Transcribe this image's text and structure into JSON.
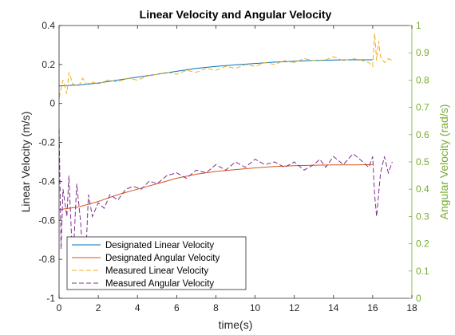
{
  "chart_data": {
    "type": "line",
    "title": "Linear Velocity and Angular Velocity",
    "xlabel": "time(s)",
    "ylabel": "Linear Velocity (m/s)",
    "ylabel_right": "Angular Velocity (rad/s)",
    "xlim": [
      0,
      18
    ],
    "ylim": [
      -1,
      0.4
    ],
    "ylim_right": [
      0,
      1
    ],
    "x_ticks": [
      "0",
      "2",
      "4",
      "6",
      "8",
      "10",
      "12",
      "14",
      "16",
      "18"
    ],
    "y_ticks": [
      "0.4",
      "0.2",
      "0",
      "-0.2",
      "-0.4",
      "-0.6",
      "-0.8",
      "-1"
    ],
    "y_ticks_right": [
      "1",
      "0.9",
      "0.8",
      "0.7",
      "0.6",
      "0.5",
      "0.4",
      "0.3",
      "0.2",
      "0.1",
      "0"
    ],
    "grid": false,
    "legend_position": "bottom-left",
    "colors": {
      "designated_linear": "#0072bd",
      "designated_angular": "#d95319",
      "measured_linear": "#edb120",
      "measured_angular": "#7e2f8e",
      "right_axis": "#77ac30"
    },
    "series": [
      {
        "name": "Designated Linear Velocity",
        "axis": "left",
        "style": "solid",
        "x": [
          0,
          1,
          2,
          3,
          4,
          5,
          6,
          7,
          8,
          9,
          10,
          11,
          12,
          13,
          14,
          15,
          16
        ],
        "y": [
          0.09,
          0.095,
          0.105,
          0.12,
          0.135,
          0.15,
          0.165,
          0.18,
          0.19,
          0.198,
          0.205,
          0.212,
          0.217,
          0.221,
          0.223,
          0.224,
          0.224
        ]
      },
      {
        "name": "Designated Angular Velocity",
        "axis": "right",
        "style": "solid",
        "x": [
          0,
          1,
          2,
          3,
          4,
          5,
          6,
          7,
          8,
          9,
          10,
          11,
          12,
          13,
          14,
          15,
          16
        ],
        "y": [
          0.325,
          0.335,
          0.355,
          0.38,
          0.4,
          0.42,
          0.44,
          0.455,
          0.465,
          0.472,
          0.478,
          0.483,
          0.486,
          0.488,
          0.489,
          0.489,
          0.49
        ]
      },
      {
        "name": "Measured Linear Velocity",
        "axis": "left",
        "style": "dashed",
        "x": [
          0,
          0.2,
          0.4,
          0.5,
          0.7,
          1.0,
          1.2,
          1.4,
          1.7,
          2.0,
          2.5,
          3.0,
          3.5,
          4.0,
          4.5,
          5.0,
          5.5,
          6.0,
          6.5,
          7.0,
          7.5,
          8.0,
          8.5,
          9.0,
          9.5,
          10.0,
          10.5,
          11.0,
          11.5,
          12.0,
          12.5,
          13.0,
          13.5,
          14.0,
          14.5,
          15.0,
          15.5,
          15.8,
          16.0,
          16.1,
          16.2,
          16.3,
          16.4,
          16.6,
          16.8,
          17.0
        ],
        "y": [
          0.03,
          0.12,
          0.05,
          0.16,
          0.1,
          0.09,
          0.13,
          0.1,
          0.11,
          0.1,
          0.12,
          0.11,
          0.13,
          0.12,
          0.14,
          0.15,
          0.16,
          0.15,
          0.17,
          0.16,
          0.18,
          0.17,
          0.19,
          0.18,
          0.2,
          0.19,
          0.21,
          0.2,
          0.22,
          0.21,
          0.23,
          0.22,
          0.22,
          0.24,
          0.22,
          0.23,
          0.22,
          0.21,
          0.19,
          0.36,
          0.22,
          0.32,
          0.24,
          0.21,
          0.23,
          0.22
        ]
      },
      {
        "name": "Measured Angular Velocity",
        "axis": "right",
        "style": "dashed",
        "x": [
          0,
          0.1,
          0.2,
          0.4,
          0.5,
          0.7,
          0.9,
          1.1,
          1.3,
          1.5,
          1.7,
          2.0,
          2.3,
          2.6,
          3.0,
          3.4,
          3.8,
          4.2,
          4.6,
          5.0,
          5.5,
          6.0,
          6.5,
          7.0,
          7.5,
          8.0,
          8.5,
          9.0,
          9.5,
          10.0,
          10.5,
          11.0,
          11.5,
          12.0,
          12.5,
          13.0,
          13.3,
          13.6,
          14.0,
          14.5,
          15.0,
          15.5,
          15.8,
          16.0,
          16.1,
          16.2,
          16.4,
          16.6,
          16.8,
          17.0
        ],
        "y": [
          0.62,
          0.18,
          0.4,
          0.3,
          0.45,
          0.12,
          0.42,
          0.28,
          0.05,
          0.38,
          0.3,
          0.35,
          0.33,
          0.38,
          0.36,
          0.4,
          0.41,
          0.4,
          0.43,
          0.42,
          0.45,
          0.46,
          0.44,
          0.47,
          0.46,
          0.49,
          0.47,
          0.5,
          0.48,
          0.51,
          0.49,
          0.5,
          0.48,
          0.5,
          0.47,
          0.49,
          0.51,
          0.48,
          0.52,
          0.49,
          0.53,
          0.5,
          0.48,
          0.52,
          0.38,
          0.3,
          0.46,
          0.52,
          0.46,
          0.5
        ]
      }
    ]
  }
}
